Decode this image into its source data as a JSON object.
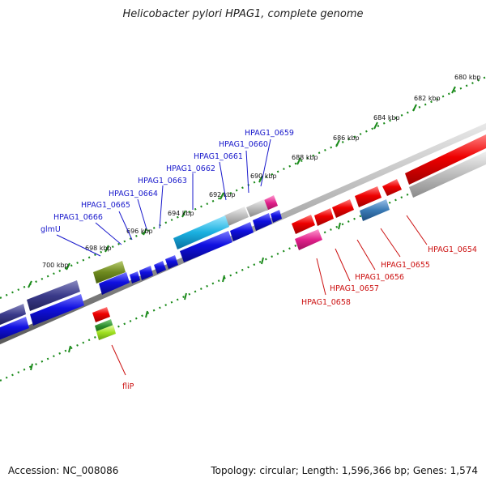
{
  "map": {
    "title": "Helicobacter pylori HPAG1, complete genome",
    "accession_text": "Accession: NC_008086",
    "summary_text": "Topology: circular; Length: 1,596,366 bp; Genes: 1,574"
  },
  "genome": {
    "accession": "NC_008086",
    "topology": "circular",
    "length_bp": 1596366,
    "genes": 1574
  },
  "ticks": [
    "680 kbp",
    "682 kbp",
    "684 kbp",
    "686 kbp",
    "688 kbp",
    "690 kbp",
    "692 kbp",
    "694 kbp",
    "696 kbp",
    "698 kbp",
    "700 kbp"
  ],
  "gene_labels": {
    "top": [
      "glmU",
      "HPAG1_0666",
      "HPAG1_0665",
      "HPAG1_0664",
      "HPAG1_0663",
      "HPAG1_0662",
      "HPAG1_0661",
      "HPAG1_0660",
      "HPAG1_0659"
    ],
    "bottom": [
      "HPAG1_0658",
      "HPAG1_0657",
      "HPAG1_0656",
      "HPAG1_0655",
      "HPAG1_0654",
      "fliP"
    ]
  },
  "colors": {
    "forward_red": "#e00000",
    "reverse_blue": "#1010e0",
    "gray": "#b8b8b8",
    "navy": "#3a3a8a",
    "olive": "#6f8a1f",
    "cyan": "#1ab0e0",
    "steel": "#3a7ab5",
    "magenta": "#e0208a",
    "green_dark": "#2a8a2a",
    "green_light": "#a0e020",
    "tick_green": "#1a8a1a",
    "label_blue": "#1a1acc",
    "label_red": "#cc1111"
  }
}
